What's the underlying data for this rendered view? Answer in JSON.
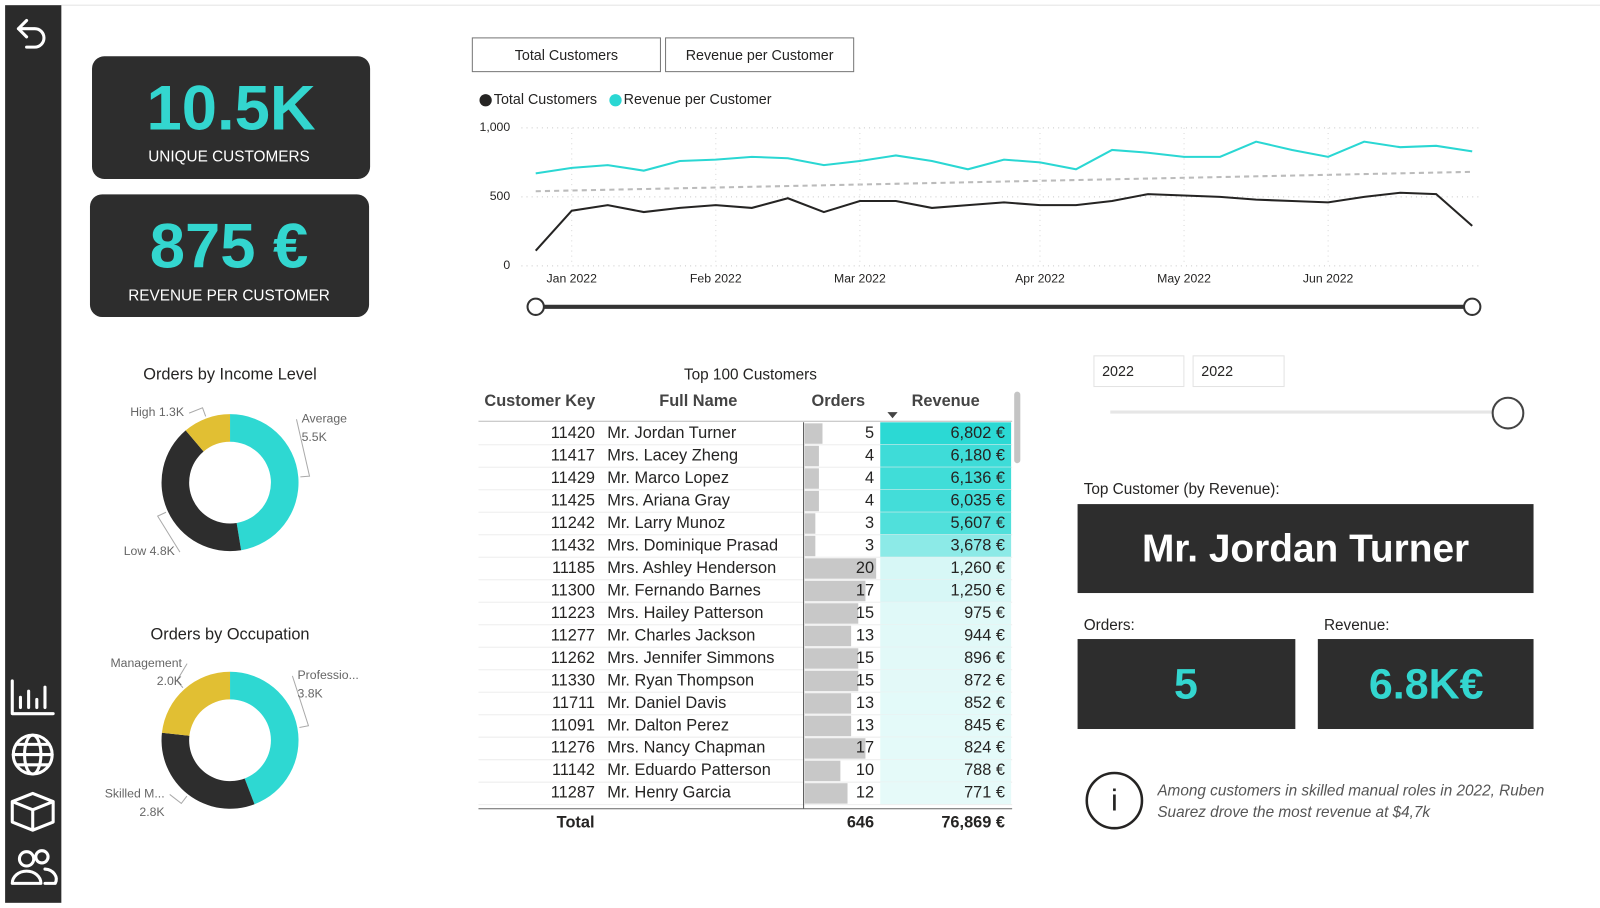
{
  "kpis": [
    {
      "value": "10.5K",
      "label": "UNIQUE CUSTOMERS"
    },
    {
      "value": "875 €",
      "label": "REVENUE PER CUSTOMER"
    }
  ],
  "tabs": [
    "Total Customers",
    "Revenue per Customer"
  ],
  "chart_data": [
    {
      "type": "line",
      "categories": [
        null,
        "Jan 2022",
        null,
        null,
        null,
        "Feb 2022",
        null,
        null,
        null,
        "Mar 2022",
        null,
        null,
        null,
        null,
        "Apr 2022",
        null,
        null,
        null,
        "May 2022",
        null,
        null,
        null,
        "Jun 2022",
        null,
        null,
        null,
        null
      ],
      "series": [
        {
          "name": "Total Customers",
          "color": "#252423",
          "values": [
            110,
            400,
            440,
            390,
            420,
            440,
            420,
            490,
            390,
            470,
            470,
            420,
            440,
            460,
            440,
            440,
            470,
            520,
            510,
            500,
            480,
            470,
            460,
            500,
            530,
            520,
            290
          ]
        },
        {
          "name": "Revenue per Customer",
          "color": "#2ad7d3",
          "values": [
            670,
            710,
            730,
            690,
            760,
            770,
            790,
            780,
            730,
            760,
            800,
            760,
            700,
            770,
            750,
            700,
            840,
            820,
            790,
            790,
            900,
            840,
            790,
            900,
            860,
            870,
            830
          ]
        }
      ],
      "ylim": [
        0,
        1000
      ],
      "yticks": [
        0,
        500,
        {
          "value": 1000,
          "label": "1,000"
        }
      ],
      "grid": true
    },
    {
      "type": "donut",
      "title": "Orders by Income Level",
      "categories": [
        "Average",
        "Low",
        "High"
      ],
      "values": [
        5500,
        4800,
        1300
      ],
      "value_labels": [
        "5.5K",
        "4.8K",
        "1.3K"
      ],
      "colors": [
        "#2ed8d2",
        "#2d2d2d",
        "#e1bf33"
      ]
    },
    {
      "type": "donut",
      "title": "Orders by Occupation",
      "categories": [
        "Professio...",
        "Skilled M...",
        "Management"
      ],
      "values": [
        3800,
        2800,
        2000
      ],
      "value_labels": [
        "3.8K",
        "2.8K",
        "2.0K"
      ],
      "colors": [
        "#2ed8d2",
        "#2d2d2d",
        "#e1bf33"
      ]
    }
  ],
  "table": {
    "title": "Top 100 Customers",
    "columns": [
      "Customer Key",
      "Full Name",
      "Orders",
      "Revenue"
    ],
    "rows": [
      [
        11420,
        "Mr. Jordan Turner",
        5,
        6802
      ],
      [
        11417,
        "Mrs. Lacey Zheng",
        4,
        6180
      ],
      [
        11429,
        "Mr. Marco Lopez",
        4,
        6136
      ],
      [
        11425,
        "Mrs. Ariana Gray",
        4,
        6035
      ],
      [
        11242,
        "Mr. Larry Munoz",
        3,
        5607
      ],
      [
        11432,
        "Mrs. Dominique Prasad",
        3,
        3678
      ],
      [
        11185,
        "Mrs. Ashley Henderson",
        20,
        1260
      ],
      [
        11300,
        "Mr. Fernando Barnes",
        17,
        1250
      ],
      [
        11223,
        "Mrs. Hailey Patterson",
        15,
        975
      ],
      [
        11277,
        "Mr. Charles Jackson",
        13,
        944
      ],
      [
        11262,
        "Mrs. Jennifer Simmons",
        15,
        896
      ],
      [
        11330,
        "Mr. Ryan Thompson",
        15,
        872
      ],
      [
        11711,
        "Mr. Daniel Davis",
        13,
        852
      ],
      [
        11091,
        "Mr. Dalton Perez",
        13,
        845
      ],
      [
        11276,
        "Mrs. Nancy Chapman",
        17,
        824
      ],
      [
        11142,
        "Mr. Eduardo Patterson",
        10,
        788
      ],
      [
        11287,
        "Mr. Henry Garcia",
        12,
        771
      ]
    ],
    "revenue_labels": [
      "6,802 €",
      "6,180 €",
      "6,136 €",
      "6,035 €",
      "5,607 €",
      "3,678 €",
      "1,260 €",
      "1,250 €",
      "975 €",
      "944 €",
      "896 €",
      "872 €",
      "852 €",
      "845 €",
      "824 €",
      "788 €",
      "771 €"
    ],
    "total": {
      "label": "Total",
      "orders": 646,
      "revenue": "76,869 €"
    }
  },
  "slicer": {
    "from": "2022",
    "to": "2022"
  },
  "top_customer": {
    "title": "Top Customer (by Revenue):",
    "name": "Mr. Jordan Turner",
    "orders_label": "Orders:",
    "orders": "5",
    "revenue_label": "Revenue:",
    "revenue": "6.8K€"
  },
  "insight": "Among customers in skilled manual roles in 2022, Ruben Suarez drove the most revenue at $4,7k"
}
